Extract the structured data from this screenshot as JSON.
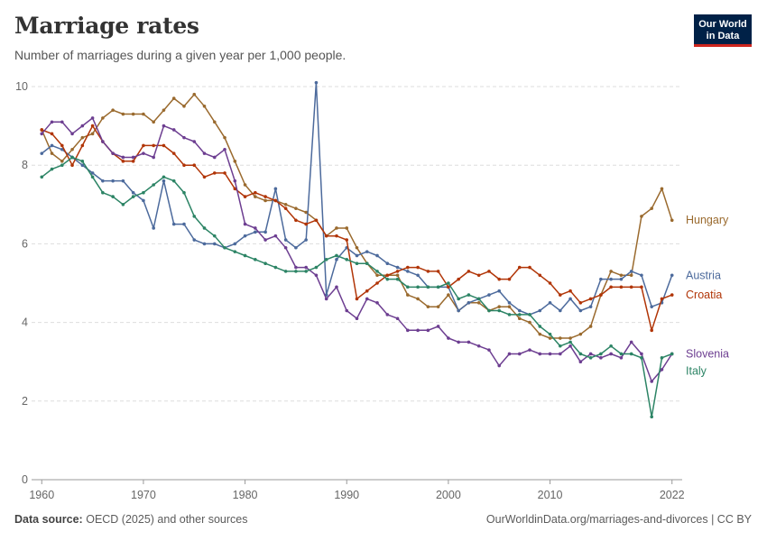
{
  "header": {
    "title": "Marriage rates",
    "subtitle": "Number of marriages during a given year per 1,000 people.",
    "logo_line1": "Our World",
    "logo_line2": "in Data"
  },
  "footer": {
    "source_label": "Data source:",
    "source_text": "OECD (2025) and other sources",
    "link": "OurWorldinData.org/marriages-and-divorces | CC BY"
  },
  "colors": {
    "Hungary": "#9a6a2e",
    "Austria": "#4c6a9c",
    "Croatia": "#b13507",
    "Slovenia": "#6d3e91",
    "Italy": "#2c8465"
  },
  "chart_data": {
    "type": "line",
    "x_tick_labels": [
      "1960",
      "1970",
      "1980",
      "1990",
      "2000",
      "2010",
      "2022"
    ],
    "y_tick_labels": [
      "0",
      "2",
      "4",
      "6",
      "8",
      "10"
    ],
    "xlim": [
      1959,
      2023
    ],
    "ylim": [
      0,
      10
    ],
    "grid": "horizontal dashed",
    "legend": "line-end labels",
    "series": [
      {
        "name": "Hungary",
        "x": [
          1960,
          1961,
          1962,
          1963,
          1964,
          1965,
          1966,
          1967,
          1968,
          1969,
          1970,
          1971,
          1972,
          1973,
          1974,
          1975,
          1976,
          1977,
          1978,
          1979,
          1980,
          1981,
          1982,
          1983,
          1984,
          1985,
          1986,
          1987,
          1988,
          1989,
          1990,
          1991,
          1992,
          1993,
          1994,
          1995,
          1996,
          1997,
          1998,
          1999,
          2000,
          2001,
          2002,
          2003,
          2004,
          2005,
          2006,
          2007,
          2008,
          2009,
          2010,
          2011,
          2012,
          2013,
          2014,
          2015,
          2016,
          2017,
          2018,
          2019,
          2020,
          2021,
          2022
        ],
        "values": [
          8.9,
          8.3,
          8.1,
          8.4,
          8.7,
          8.8,
          9.2,
          9.4,
          9.3,
          9.3,
          9.3,
          9.1,
          9.4,
          9.7,
          9.5,
          9.8,
          9.5,
          9.1,
          8.7,
          8.1,
          7.5,
          7.2,
          7.1,
          7.1,
          7.0,
          6.9,
          6.8,
          6.6,
          6.2,
          6.4,
          6.4,
          5.9,
          5.5,
          5.2,
          5.2,
          5.2,
          4.7,
          4.6,
          4.4,
          4.4,
          4.7,
          4.3,
          4.5,
          4.5,
          4.3,
          4.4,
          4.4,
          4.1,
          4.0,
          3.7,
          3.6,
          3.6,
          3.6,
          3.7,
          3.9,
          4.7,
          5.3,
          5.2,
          5.2,
          6.7,
          6.9,
          7.4,
          6.6
        ]
      },
      {
        "name": "Austria",
        "x": [
          1960,
          1961,
          1962,
          1963,
          1964,
          1965,
          1966,
          1967,
          1968,
          1969,
          1970,
          1971,
          1972,
          1973,
          1974,
          1975,
          1976,
          1977,
          1978,
          1979,
          1980,
          1981,
          1982,
          1983,
          1984,
          1985,
          1986,
          1987,
          1988,
          1989,
          1990,
          1991,
          1992,
          1993,
          1994,
          1995,
          1996,
          1997,
          1998,
          1999,
          2000,
          2001,
          2002,
          2003,
          2004,
          2005,
          2006,
          2007,
          2008,
          2009,
          2010,
          2011,
          2012,
          2013,
          2014,
          2015,
          2016,
          2017,
          2018,
          2019,
          2020,
          2021,
          2022
        ],
        "values": [
          8.3,
          8.5,
          8.4,
          8.2,
          8.0,
          7.8,
          7.6,
          7.6,
          7.6,
          7.3,
          7.1,
          6.4,
          7.6,
          6.5,
          6.5,
          6.1,
          6.0,
          6.0,
          5.9,
          6.0,
          6.2,
          6.3,
          6.3,
          7.4,
          6.1,
          5.9,
          6.1,
          10.1,
          4.7,
          5.6,
          5.9,
          5.7,
          5.8,
          5.7,
          5.5,
          5.4,
          5.3,
          5.2,
          4.9,
          4.9,
          4.9,
          4.3,
          4.5,
          4.6,
          4.7,
          4.8,
          4.5,
          4.3,
          4.2,
          4.3,
          4.5,
          4.3,
          4.6,
          4.3,
          4.4,
          5.1,
          5.1,
          5.1,
          5.3,
          5.2,
          4.4,
          4.5,
          5.2
        ]
      },
      {
        "name": "Croatia",
        "x": [
          1960,
          1961,
          1962,
          1963,
          1964,
          1965,
          1966,
          1967,
          1968,
          1969,
          1970,
          1971,
          1972,
          1973,
          1974,
          1975,
          1976,
          1977,
          1978,
          1979,
          1980,
          1981,
          1982,
          1983,
          1984,
          1985,
          1986,
          1987,
          1988,
          1989,
          1990,
          1991,
          1992,
          1993,
          1994,
          1995,
          1996,
          1997,
          1998,
          1999,
          2000,
          2001,
          2002,
          2003,
          2004,
          2005,
          2006,
          2007,
          2008,
          2009,
          2010,
          2011,
          2012,
          2013,
          2014,
          2015,
          2016,
          2017,
          2018,
          2019,
          2020,
          2021,
          2022
        ],
        "values": [
          8.9,
          8.8,
          8.5,
          8.0,
          8.5,
          9.0,
          8.6,
          8.3,
          8.1,
          8.1,
          8.5,
          8.5,
          8.5,
          8.3,
          8.0,
          8.0,
          7.7,
          7.8,
          7.8,
          7.4,
          7.2,
          7.3,
          7.2,
          7.1,
          6.9,
          6.6,
          6.5,
          6.6,
          6.2,
          6.2,
          6.1,
          4.6,
          4.8,
          5.0,
          5.2,
          5.3,
          5.4,
          5.4,
          5.3,
          5.3,
          4.9,
          5.1,
          5.3,
          5.2,
          5.3,
          5.1,
          5.1,
          5.4,
          5.4,
          5.2,
          5.0,
          4.7,
          4.8,
          4.5,
          4.6,
          4.7,
          4.9,
          4.9,
          4.9,
          4.9,
          3.8,
          4.6,
          4.7
        ]
      },
      {
        "name": "Slovenia",
        "x": [
          1960,
          1961,
          1962,
          1963,
          1964,
          1965,
          1966,
          1967,
          1968,
          1969,
          1970,
          1971,
          1972,
          1973,
          1974,
          1975,
          1976,
          1977,
          1978,
          1979,
          1980,
          1981,
          1982,
          1983,
          1984,
          1985,
          1986,
          1987,
          1988,
          1989,
          1990,
          1991,
          1992,
          1993,
          1994,
          1995,
          1996,
          1997,
          1998,
          1999,
          2000,
          2001,
          2002,
          2003,
          2004,
          2005,
          2006,
          2007,
          2008,
          2009,
          2010,
          2011,
          2012,
          2013,
          2014,
          2015,
          2016,
          2017,
          2018,
          2019,
          2020,
          2021,
          2022
        ],
        "values": [
          8.8,
          9.1,
          9.1,
          8.8,
          9.0,
          9.2,
          8.6,
          8.3,
          8.2,
          8.2,
          8.3,
          8.2,
          9.0,
          8.9,
          8.7,
          8.6,
          8.3,
          8.2,
          8.4,
          7.6,
          6.5,
          6.4,
          6.1,
          6.2,
          5.9,
          5.4,
          5.4,
          5.2,
          4.6,
          4.9,
          4.3,
          4.1,
          4.6,
          4.5,
          4.2,
          4.1,
          3.8,
          3.8,
          3.8,
          3.9,
          3.6,
          3.5,
          3.5,
          3.4,
          3.3,
          2.9,
          3.2,
          3.2,
          3.3,
          3.2,
          3.2,
          3.2,
          3.4,
          3.0,
          3.2,
          3.1,
          3.2,
          3.1,
          3.5,
          3.2,
          2.5,
          2.8,
          3.2
        ]
      },
      {
        "name": "Italy",
        "x": [
          1960,
          1961,
          1962,
          1963,
          1964,
          1965,
          1966,
          1967,
          1968,
          1969,
          1970,
          1971,
          1972,
          1973,
          1974,
          1975,
          1976,
          1977,
          1978,
          1979,
          1980,
          1981,
          1982,
          1983,
          1984,
          1985,
          1986,
          1987,
          1988,
          1989,
          1990,
          1991,
          1992,
          1993,
          1994,
          1995,
          1996,
          1997,
          1998,
          1999,
          2000,
          2001,
          2002,
          2003,
          2004,
          2005,
          2006,
          2007,
          2008,
          2009,
          2010,
          2011,
          2012,
          2013,
          2014,
          2015,
          2016,
          2017,
          2018,
          2019,
          2020,
          2021,
          2022
        ],
        "values": [
          7.7,
          7.9,
          8.0,
          8.2,
          8.1,
          7.7,
          7.3,
          7.2,
          7.0,
          7.2,
          7.3,
          7.5,
          7.7,
          7.6,
          7.3,
          6.7,
          6.4,
          6.2,
          5.9,
          5.8,
          5.7,
          5.6,
          5.5,
          5.4,
          5.3,
          5.3,
          5.3,
          5.4,
          5.6,
          5.7,
          5.6,
          5.5,
          5.5,
          5.3,
          5.1,
          5.1,
          4.9,
          4.9,
          4.9,
          4.9,
          5.0,
          4.6,
          4.7,
          4.6,
          4.3,
          4.3,
          4.2,
          4.2,
          4.2,
          3.9,
          3.7,
          3.4,
          3.5,
          3.2,
          3.1,
          3.2,
          3.4,
          3.2,
          3.2,
          3.1,
          1.6,
          3.1,
          3.2
        ]
      }
    ]
  }
}
